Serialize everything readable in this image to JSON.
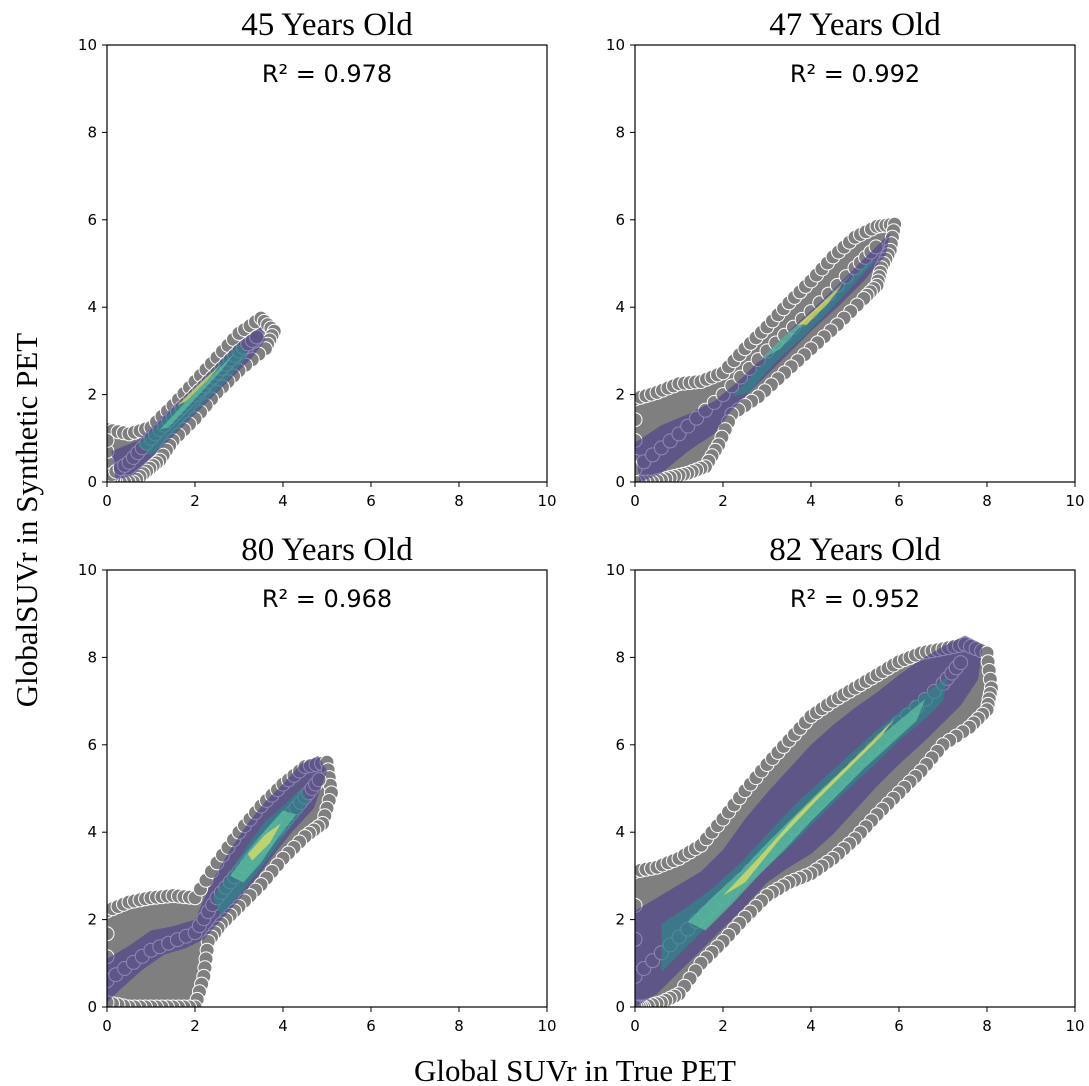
{
  "figure": {
    "xlabel": "Global SUVr in True PET",
    "ylabel": "GlobalSUVr in Synthetic PET"
  },
  "colors": {
    "points": "#7f7f7f",
    "point_edge": "#ffffff",
    "kde_low": "#4b3d8a",
    "kde_mid": "#2a8c8c",
    "kde_high": "#5cc4a0",
    "kde_peak": "#e6e060"
  },
  "chart_data": [
    {
      "type": "scatter",
      "title": "45 Years Old",
      "r2_text": "R² = 0.978",
      "xlim": [
        0,
        10
      ],
      "ylim": [
        0,
        10
      ],
      "xticks": [
        0,
        2,
        4,
        6,
        8,
        10
      ],
      "yticks": [
        0,
        2,
        4,
        6,
        8,
        10
      ],
      "grid": false,
      "density_overlay": "kde",
      "trend": {
        "x": [
          0,
          0.5,
          1,
          1.5,
          2,
          2.5,
          3,
          3.5
        ],
        "y": [
          0.1,
          0.45,
          1.0,
          1.5,
          2.0,
          2.5,
          3.0,
          3.4
        ]
      },
      "cloud": [
        {
          "x": [
            0,
            0.5,
            1,
            1.5,
            2,
            2.5,
            3,
            3.5,
            3.8,
            3.6,
            3.0,
            2.5,
            2.0,
            1.5,
            1.2,
            0.9,
            0.6,
            0.2,
            0
          ],
          "y": [
            1.2,
            1.1,
            1.25,
            1.75,
            2.3,
            2.85,
            3.4,
            3.75,
            3.45,
            3.05,
            2.55,
            2.05,
            1.45,
            0.95,
            0.5,
            0.25,
            0,
            0,
            0.2
          ]
        }
      ],
      "density": [
        {
          "level": "low",
          "x": [
            0.1,
            0.7,
            1.3,
            1.9,
            2.5,
            3.0,
            3.5,
            3.6,
            3.3,
            2.8,
            2.2,
            1.6,
            1.0,
            0.6,
            0.2
          ],
          "y": [
            0.7,
            0.95,
            1.55,
            2.1,
            2.7,
            3.2,
            3.55,
            3.25,
            2.85,
            2.35,
            1.75,
            1.15,
            0.55,
            0.15,
            0.05
          ]
        },
        {
          "level": "mid",
          "x": [
            0.7,
            1.3,
            1.9,
            2.5,
            3.0,
            3.2,
            2.8,
            2.2,
            1.6,
            1.0
          ],
          "y": [
            0.85,
            1.45,
            2.05,
            2.65,
            3.15,
            2.9,
            2.4,
            1.8,
            1.2,
            0.6
          ]
        },
        {
          "level": "high",
          "x": [
            1.2,
            1.8,
            2.4,
            2.9,
            2.6,
            2.0,
            1.4
          ],
          "y": [
            1.2,
            1.85,
            2.45,
            2.95,
            2.55,
            1.9,
            1.25
          ]
        },
        {
          "level": "peak",
          "x": [
            1.6,
            2.1,
            2.6,
            2.3,
            1.8
          ],
          "y": [
            1.75,
            2.25,
            2.7,
            2.35,
            1.85
          ]
        }
      ]
    },
    {
      "type": "scatter",
      "title": "47 Years Old",
      "r2_text": "R² = 0.992",
      "xlim": [
        0,
        10
      ],
      "ylim": [
        0,
        10
      ],
      "xticks": [
        0,
        2,
        4,
        6,
        8,
        10
      ],
      "yticks": [
        0,
        2,
        4,
        6,
        8,
        10
      ],
      "grid": false,
      "density_overlay": "kde",
      "trend": {
        "x": [
          0,
          1,
          2,
          3,
          4,
          5,
          5.6
        ],
        "y": [
          0.3,
          1.1,
          2.0,
          3.0,
          3.9,
          4.9,
          5.5
        ]
      },
      "cloud": [
        {
          "x": [
            0,
            0.5,
            1.0,
            1.5,
            2.0,
            2.5,
            3.0,
            3.5,
            4.0,
            4.5,
            5.0,
            5.5,
            5.9,
            5.8,
            5.6,
            5.5,
            5.2,
            4.6,
            4.0,
            3.4,
            2.8,
            2.2,
            1.9,
            1.6,
            1.2,
            0.8,
            0.4,
            0
          ],
          "y": [
            1.9,
            2.05,
            2.25,
            2.3,
            2.5,
            3.05,
            3.55,
            4.1,
            4.6,
            5.15,
            5.6,
            5.85,
            5.9,
            5.3,
            4.9,
            4.5,
            4.2,
            3.6,
            3.05,
            2.5,
            1.95,
            1.55,
            0.85,
            0.35,
            0.2,
            0.1,
            0,
            0
          ]
        }
      ],
      "density": [
        {
          "level": "low",
          "x": [
            0,
            0.6,
            1.2,
            1.8,
            2.4,
            3.0,
            3.6,
            4.2,
            4.8,
            5.4,
            5.8,
            5.7,
            5.2,
            4.6,
            4.0,
            3.4,
            2.8,
            2.2,
            1.8,
            1.2,
            0.6,
            0.1
          ],
          "y": [
            0.9,
            1.3,
            1.55,
            1.85,
            2.35,
            2.95,
            3.55,
            4.1,
            4.7,
            5.3,
            5.7,
            5.2,
            4.6,
            4.0,
            3.45,
            2.85,
            2.25,
            1.65,
            1.1,
            0.7,
            0.2,
            0
          ]
        },
        {
          "level": "mid",
          "x": [
            2.2,
            2.8,
            3.4,
            4.0,
            4.6,
            5.2,
            5.5,
            5.0,
            4.4,
            3.8,
            3.2,
            2.6
          ],
          "y": [
            1.95,
            2.6,
            3.2,
            3.75,
            4.35,
            4.95,
            5.1,
            4.55,
            3.9,
            3.3,
            2.75,
            2.05
          ]
        },
        {
          "level": "high",
          "x": [
            2.8,
            3.4,
            4.0,
            4.6,
            5.0,
            4.5,
            3.9,
            3.3
          ],
          "y": [
            2.75,
            3.35,
            3.85,
            4.45,
            4.85,
            4.3,
            3.7,
            3.05
          ]
        },
        {
          "level": "peak",
          "x": [
            3.7,
            4.2,
            4.7,
            4.4,
            3.9
          ],
          "y": [
            3.6,
            4.05,
            4.5,
            4.1,
            3.6
          ]
        }
      ]
    },
    {
      "type": "scatter",
      "title": "80 Years Old",
      "r2_text": "R² = 0.968",
      "xlim": [
        0,
        10
      ],
      "ylim": [
        0,
        10
      ],
      "xticks": [
        0,
        2,
        4,
        6,
        8,
        10
      ],
      "yticks": [
        0,
        2,
        4,
        6,
        8,
        10
      ],
      "grid": false,
      "density_overlay": "kde",
      "trend": {
        "x": [
          0,
          1,
          2,
          2.5,
          3,
          3.5,
          4,
          4.5,
          4.9
        ],
        "y": [
          0.6,
          1.3,
          1.7,
          2.5,
          3.1,
          3.7,
          4.2,
          4.8,
          5.3
        ]
      },
      "cloud": [
        {
          "x": [
            0,
            0.5,
            1.0,
            1.5,
            2.0,
            2.5,
            3.0,
            3.5,
            4.0,
            4.5,
            5.0,
            5.1,
            4.9,
            4.5,
            4.0,
            3.5,
            3.0,
            2.6,
            2.3,
            2.2,
            2.0,
            1.5,
            1.0,
            0.5,
            0
          ],
          "y": [
            2.2,
            2.4,
            2.5,
            2.55,
            2.5,
            3.3,
            4.0,
            4.6,
            5.1,
            5.5,
            5.6,
            4.9,
            4.2,
            3.9,
            3.4,
            2.8,
            2.3,
            1.9,
            1.5,
            0.7,
            0,
            0,
            0,
            0,
            0.1
          ]
        }
      ],
      "density": [
        {
          "level": "low",
          "x": [
            0,
            0.5,
            1.0,
            1.5,
            2.0,
            2.4,
            2.8,
            3.2,
            3.6,
            4.0,
            4.4,
            4.8,
            5.0,
            4.7,
            4.2,
            3.8,
            3.4,
            3.0,
            2.6,
            2.2,
            1.8,
            1.3,
            0.8,
            0.3,
            0
          ],
          "y": [
            1.1,
            1.4,
            1.75,
            1.85,
            2.0,
            2.9,
            3.6,
            4.2,
            4.7,
            5.1,
            5.55,
            5.75,
            5.4,
            4.55,
            4.0,
            3.5,
            2.95,
            2.45,
            2.0,
            1.55,
            1.35,
            1.2,
            0.85,
            0.4,
            0.1
          ]
        },
        {
          "level": "mid",
          "x": [
            2.4,
            2.8,
            3.2,
            3.6,
            4.0,
            4.4,
            4.6,
            4.2,
            3.8,
            3.4,
            3.0,
            2.6
          ],
          "y": [
            2.5,
            3.1,
            3.7,
            4.25,
            4.6,
            5.0,
            4.7,
            4.15,
            3.6,
            3.05,
            2.55,
            2.1
          ]
        },
        {
          "level": "high",
          "x": [
            2.8,
            3.2,
            3.6,
            4.0,
            4.3,
            3.9,
            3.5,
            3.1
          ],
          "y": [
            3.0,
            3.55,
            4.05,
            4.5,
            4.4,
            3.9,
            3.3,
            2.85
          ]
        },
        {
          "level": "peak",
          "x": [
            3.2,
            3.6,
            3.95,
            3.7,
            3.3
          ],
          "y": [
            3.5,
            3.95,
            4.2,
            3.75,
            3.35
          ]
        }
      ]
    },
    {
      "type": "scatter",
      "title": "82 Years Old",
      "r2_text": "R² = 0.952",
      "xlim": [
        0,
        10
      ],
      "ylim": [
        0,
        10
      ],
      "xticks": [
        0,
        2,
        4,
        6,
        8,
        10
      ],
      "yticks": [
        0,
        2,
        4,
        6,
        8,
        10
      ],
      "grid": false,
      "density_overlay": "kde",
      "trend": {
        "x": [
          0,
          1,
          2,
          3,
          4,
          5,
          6,
          7,
          7.5
        ],
        "y": [
          0.7,
          1.6,
          2.5,
          3.5,
          4.5,
          5.5,
          6.5,
          7.4,
          8.0
        ]
      },
      "cloud": [
        {
          "x": [
            0,
            0.5,
            1.0,
            1.5,
            2.0,
            2.5,
            3.0,
            3.5,
            4.0,
            4.5,
            5.0,
            5.5,
            6.0,
            6.5,
            7.0,
            7.5,
            8.0,
            8.1,
            8.0,
            7.6,
            7.0,
            6.5,
            6.0,
            5.5,
            5.0,
            4.5,
            4.0,
            3.5,
            3.0,
            2.5,
            2.0,
            1.5,
            1.0,
            0.6,
            0.2,
            0
          ],
          "y": [
            3.1,
            3.2,
            3.4,
            3.7,
            4.3,
            4.95,
            5.55,
            6.1,
            6.65,
            7.0,
            7.3,
            7.6,
            7.9,
            8.1,
            8.2,
            8.3,
            8.1,
            7.3,
            6.8,
            6.4,
            6.0,
            5.4,
            4.9,
            4.4,
            3.85,
            3.4,
            3.05,
            2.85,
            2.55,
            2.05,
            1.5,
            1.0,
            0.3,
            0.1,
            0,
            0
          ]
        }
      ],
      "density": [
        {
          "level": "low",
          "x": [
            0,
            0.5,
            1.0,
            1.5,
            2.0,
            2.5,
            3.0,
            3.5,
            4.0,
            4.5,
            5.0,
            5.5,
            6.0,
            6.5,
            7.0,
            7.5,
            7.9,
            7.8,
            7.4,
            7.0,
            6.6,
            6.0,
            5.5,
            5.0,
            4.5,
            4.0,
            3.5,
            3.0,
            2.5,
            2.0,
            1.5,
            1.0,
            0.5,
            0
          ],
          "y": [
            2.2,
            2.5,
            2.8,
            3.1,
            3.6,
            4.3,
            4.9,
            5.45,
            6.0,
            6.45,
            6.85,
            7.2,
            7.6,
            7.95,
            8.25,
            8.5,
            8.3,
            7.5,
            6.9,
            6.5,
            6.1,
            5.55,
            5.05,
            4.5,
            3.95,
            3.5,
            3.2,
            2.85,
            2.3,
            1.8,
            1.3,
            0.8,
            0.3,
            0
          ]
        },
        {
          "level": "mid",
          "x": [
            0.6,
            1.2,
            1.8,
            2.4,
            3.0,
            3.6,
            4.2,
            4.8,
            5.4,
            6.0,
            6.6,
            7.1,
            7.0,
            6.6,
            6.0,
            5.4,
            4.8,
            4.2,
            3.6,
            3.0,
            2.4,
            1.8,
            1.2,
            0.6
          ],
          "y": [
            1.9,
            2.3,
            2.75,
            3.3,
            3.95,
            4.6,
            5.15,
            5.7,
            6.25,
            6.75,
            7.2,
            7.55,
            7.0,
            6.6,
            6.1,
            5.5,
            4.95,
            4.35,
            3.75,
            3.2,
            2.65,
            2.0,
            1.4,
            0.8
          ]
        },
        {
          "level": "high",
          "x": [
            1.2,
            1.8,
            2.4,
            3.0,
            3.6,
            4.2,
            4.8,
            5.4,
            6.0,
            6.6,
            6.4,
            5.8,
            5.2,
            4.6,
            4.0,
            3.4,
            2.8,
            2.2,
            1.6
          ],
          "y": [
            1.95,
            2.55,
            3.1,
            3.75,
            4.35,
            4.95,
            5.5,
            6.05,
            6.55,
            7.05,
            6.55,
            6.0,
            5.45,
            4.85,
            4.25,
            3.6,
            3.0,
            2.35,
            1.75
          ]
        },
        {
          "level": "peak",
          "x": [
            2.0,
            2.8,
            3.6,
            4.4,
            5.2,
            5.9,
            5.6,
            4.9,
            4.1,
            3.3,
            2.5
          ],
          "y": [
            2.55,
            3.4,
            4.3,
            5.1,
            5.9,
            6.6,
            6.2,
            5.5,
            4.7,
            3.85,
            2.85
          ]
        }
      ]
    }
  ]
}
